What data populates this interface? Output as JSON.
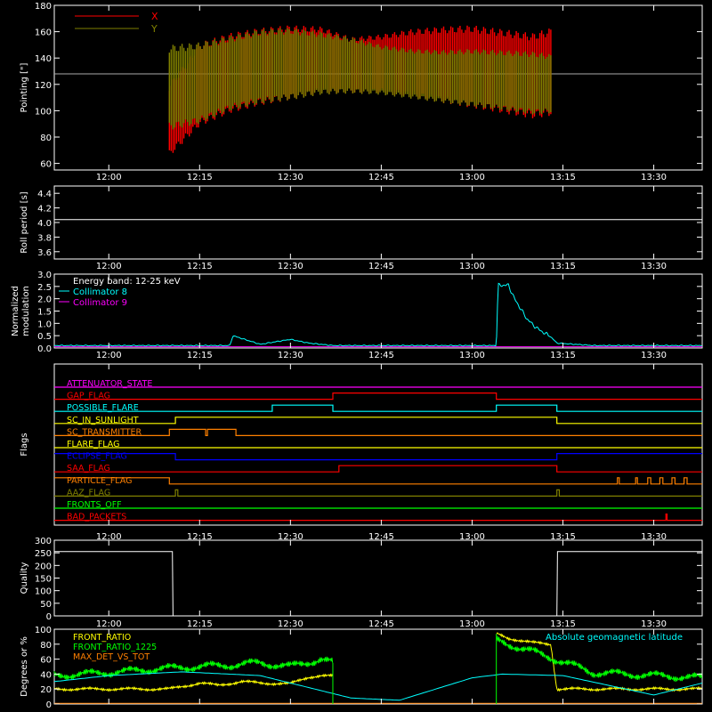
{
  "chart_data": [
    {
      "type": "line",
      "ylabel": "Pointing [\"]",
      "ylim": [
        55,
        180
      ],
      "yticks": [
        "60",
        "80",
        "100",
        "120",
        "140",
        "160",
        "180"
      ],
      "xticks": [
        "12:00",
        "12:15",
        "12:30",
        "12:45",
        "13:00",
        "13:15",
        "13:30"
      ],
      "xlim": [
        "11:51",
        "13:38"
      ],
      "reference_line_y": 128,
      "legend_position": "top-left",
      "series": [
        {
          "name": "X",
          "color": "#ff0000",
          "x": [
            "12:10",
            "12:15",
            "12:20",
            "12:25",
            "12:30",
            "12:35",
            "12:40",
            "12:45",
            "12:50",
            "12:55",
            "13:00",
            "13:05",
            "13:10",
            "13:13"
          ],
          "upper": [
            120,
            152,
            159,
            163,
            165,
            164,
            156,
            158,
            162,
            164,
            165,
            162,
            159,
            163
          ],
          "lower": [
            65,
            88,
            98,
            104,
            108,
            113,
            113,
            113,
            110,
            106,
            102,
            98,
            94,
            96
          ]
        },
        {
          "name": "Y",
          "color": "#808000",
          "x": [
            "12:10",
            "12:15",
            "12:20",
            "12:25",
            "12:30",
            "12:35",
            "12:40",
            "12:45",
            "12:50",
            "12:55",
            "13:00",
            "13:05",
            "13:10",
            "13:13"
          ],
          "upper": [
            150,
            152,
            157,
            162,
            163,
            160,
            156,
            150,
            147,
            146,
            147,
            146,
            145,
            143
          ],
          "lower": [
            85,
            90,
            100,
            105,
            108,
            112,
            113,
            112,
            109,
            106,
            103,
            100,
            97,
            98
          ]
        }
      ]
    },
    {
      "type": "line",
      "ylabel": "Roll period [s]",
      "ylim": [
        3.5,
        4.5
      ],
      "yticks": [
        "3.6",
        "3.8",
        "4.0",
        "4.2",
        "4.4"
      ],
      "xticks": [
        "12:00",
        "12:15",
        "12:30",
        "12:45",
        "13:00",
        "13:15",
        "13:30"
      ],
      "series": [
        {
          "color": "#ffffff",
          "x": [
            "11:51",
            "13:38"
          ],
          "y": [
            4.04,
            4.04
          ]
        }
      ]
    },
    {
      "type": "line",
      "ylabel": "Normalized modulation",
      "ylim": [
        0,
        3.0
      ],
      "yticks": [
        "0.0",
        "0.5",
        "1.0",
        "1.5",
        "2.0",
        "2.5",
        "3.0"
      ],
      "xticks": [
        "12:00",
        "12:15",
        "12:30",
        "12:45",
        "13:00",
        "13:15",
        "13:30"
      ],
      "legend": [
        "Energy band: 12-25 keV",
        "Collimator 8",
        "Collimator 9"
      ],
      "legend_colors": [
        "#ffffff",
        "#00ffff",
        "#ff00ff"
      ],
      "series": [
        {
          "name": "Collimator 8",
          "color": "#00ffff",
          "x": [
            "11:51",
            "12:17",
            "12:20",
            "12:20.5",
            "12:25",
            "12:30",
            "12:33",
            "12:37",
            "13:04",
            "13:04.3",
            "13:06",
            "13:07",
            "13:08",
            "13:09",
            "13:10",
            "13:11",
            "13:12",
            "13:13",
            "13:14",
            "13:20",
            "13:38"
          ],
          "y": [
            0.1,
            0.1,
            0.1,
            0.5,
            0.15,
            0.35,
            0.2,
            0.1,
            0.1,
            2.55,
            2.55,
            2.0,
            1.6,
            1.2,
            0.95,
            0.75,
            0.6,
            0.45,
            0.2,
            0.1,
            0.1
          ]
        },
        {
          "name": "Collimator 9",
          "color": "#ff00ff",
          "x": [
            "11:51",
            "13:38"
          ],
          "y": [
            0.05,
            0.05
          ]
        }
      ]
    },
    {
      "type": "line",
      "ylabel": "Flags",
      "xticks": [
        "12:00",
        "12:15",
        "12:30",
        "12:45",
        "13:00",
        "13:15",
        "13:30"
      ],
      "flags": [
        {
          "name": "ATTENUATOR_STATE",
          "color": "#ff00ff",
          "steps": [
            [
              "11:51",
              0
            ],
            [
              "13:38",
              0
            ]
          ]
        },
        {
          "name": "GAP_FLAG",
          "color": "#ff0000",
          "steps": [
            [
              "11:51",
              0
            ],
            [
              "12:37",
              1
            ],
            [
              "13:04",
              0
            ],
            [
              "13:38",
              0
            ]
          ]
        },
        {
          "name": "POSSIBLE_FLARE",
          "color": "#00ffff",
          "steps": [
            [
              "11:51",
              0
            ],
            [
              "12:27",
              1
            ],
            [
              "12:37",
              0
            ],
            [
              "13:04",
              1
            ],
            [
              "13:14",
              0
            ],
            [
              "13:38",
              0
            ]
          ]
        },
        {
          "name": "SC_IN_SUNLIGHT",
          "color": "#ffff00",
          "steps": [
            [
              "11:51",
              0
            ],
            [
              "12:11",
              1
            ],
            [
              "13:14",
              0
            ],
            [
              "13:38",
              0
            ]
          ]
        },
        {
          "name": "SC_TRANSMITTER",
          "color": "#ff8000",
          "steps": [
            [
              "11:51",
              0
            ],
            [
              "12:10",
              1
            ],
            [
              "12:16",
              0
            ],
            [
              "12:16.3",
              1
            ],
            [
              "12:21",
              0
            ],
            [
              "13:38",
              0
            ]
          ]
        },
        {
          "name": "FLARE_FLAG",
          "color": "#ffff00",
          "steps": [
            [
              "11:51",
              0
            ],
            [
              "13:38",
              0
            ]
          ]
        },
        {
          "name": "ECLIPSE_FLAG",
          "color": "#0000ff",
          "steps": [
            [
              "11:51",
              1
            ],
            [
              "12:11",
              0
            ],
            [
              "13:14",
              1
            ],
            [
              "13:38",
              1
            ]
          ]
        },
        {
          "name": "SAA_FLAG",
          "color": "#ff0000",
          "steps": [
            [
              "11:51",
              0
            ],
            [
              "12:38",
              1
            ],
            [
              "13:14",
              0
            ],
            [
              "13:38",
              0
            ]
          ]
        },
        {
          "name": "PARTICLE_FLAG",
          "color": "#ff8000",
          "steps": [
            [
              "11:51",
              1
            ],
            [
              "12:10",
              0
            ],
            [
              "13:24",
              1
            ],
            [
              "13:24.3",
              0
            ],
            [
              "13:27",
              1
            ],
            [
              "13:27.3",
              0
            ],
            [
              "13:29",
              1
            ],
            [
              "13:29.5",
              0
            ],
            [
              "13:31",
              1
            ],
            [
              "13:31.5",
              0
            ],
            [
              "13:33",
              1
            ],
            [
              "13:33.5",
              0
            ],
            [
              "13:35",
              1
            ],
            [
              "13:35.5",
              0
            ],
            [
              "13:38",
              0
            ]
          ]
        },
        {
          "name": "AAZ_FLAG",
          "color": "#808000",
          "steps": [
            [
              "11:51",
              0
            ],
            [
              "12:11",
              1
            ],
            [
              "12:11.4",
              0
            ],
            [
              "13:14",
              1
            ],
            [
              "13:14.4",
              0
            ],
            [
              "13:38",
              0
            ]
          ]
        },
        {
          "name": "FRONTS_OFF",
          "color": "#00ff00",
          "steps": [
            [
              "11:51",
              0
            ],
            [
              "13:38",
              0
            ]
          ]
        },
        {
          "name": "BAD_PACKETS",
          "color": "#ff0000",
          "steps": [
            [
              "11:51",
              0
            ],
            [
              "13:32",
              1
            ],
            [
              "13:32.2",
              0
            ],
            [
              "13:38",
              0
            ]
          ]
        }
      ]
    },
    {
      "type": "line",
      "ylabel": "Quality",
      "ylim": [
        0,
        300
      ],
      "yticks": [
        "0",
        "50",
        "100",
        "150",
        "200",
        "250",
        "300"
      ],
      "xticks": [
        "12:00",
        "12:15",
        "12:30",
        "12:45",
        "13:00",
        "13:15",
        "13:30"
      ],
      "series": [
        {
          "color": "#ffffff",
          "x": [
            "11:51",
            "12:10.5",
            "12:10.6",
            "13:14",
            "13:14.1",
            "13:38"
          ],
          "y": [
            255,
            255,
            0,
            0,
            255,
            255
          ]
        }
      ]
    },
    {
      "type": "line",
      "ylabel": "Degrees or %",
      "ylim": [
        0,
        100
      ],
      "yticks": [
        "0",
        "20",
        "40",
        "60",
        "80",
        "100"
      ],
      "xticks": [
        "12:00",
        "12:15",
        "12:30",
        "12:45",
        "13:00",
        "13:15",
        "13:30"
      ],
      "legend": [
        "FRONT_RATIO",
        "FRONT_RATIO_1225",
        "MAX_DET_VS_TOT"
      ],
      "legend_colors": [
        "#ffff00",
        "#00ff00",
        "#ff8000"
      ],
      "annotation": "Absolute geomagnetic latitude",
      "annotation_color": "#00ffff",
      "series": [
        {
          "name": "FRONT_RATIO",
          "color": "#ffff00",
          "x": [
            "11:51",
            "12:10",
            "12:15",
            "12:18",
            "12:22",
            "12:25",
            "12:30",
            "12:33",
            "12:35",
            "12:37",
            "13:04",
            "13:06",
            "13:10",
            "13:13",
            "13:14",
            "13:38"
          ],
          "y": [
            20,
            20,
            28,
            25,
            30,
            28,
            27,
            36,
            38,
            37,
            94,
            88,
            82,
            80,
            20,
            20
          ]
        },
        {
          "name": "FRONT_RATIO_1225",
          "color": "#00ff00",
          "x": [
            "11:51",
            "12:00",
            "12:10",
            "12:15",
            "12:20",
            "12:25",
            "12:30",
            "12:35",
            "12:37",
            "13:04",
            "13:06",
            "13:10",
            "13:13",
            "13:20",
            "13:38"
          ],
          "y": [
            38,
            42,
            48,
            50,
            52,
            55,
            50,
            60,
            55,
            85,
            80,
            70,
            62,
            42,
            35
          ]
        },
        {
          "name": "MAX_DET_VS_TOT",
          "color": "#ff8000",
          "x": [
            "11:51",
            "13:38"
          ],
          "y": [
            1,
            1
          ]
        },
        {
          "name": "Absolute geomagnetic latitude",
          "color": "#00ffff",
          "x": [
            "11:51",
            "12:00",
            "12:12",
            "12:25",
            "12:40",
            "12:48",
            "13:00",
            "13:05",
            "13:15",
            "13:30",
            "13:38"
          ],
          "y": [
            30,
            38,
            43,
            38,
            8,
            5,
            35,
            40,
            38,
            12,
            28
          ]
        }
      ]
    }
  ]
}
